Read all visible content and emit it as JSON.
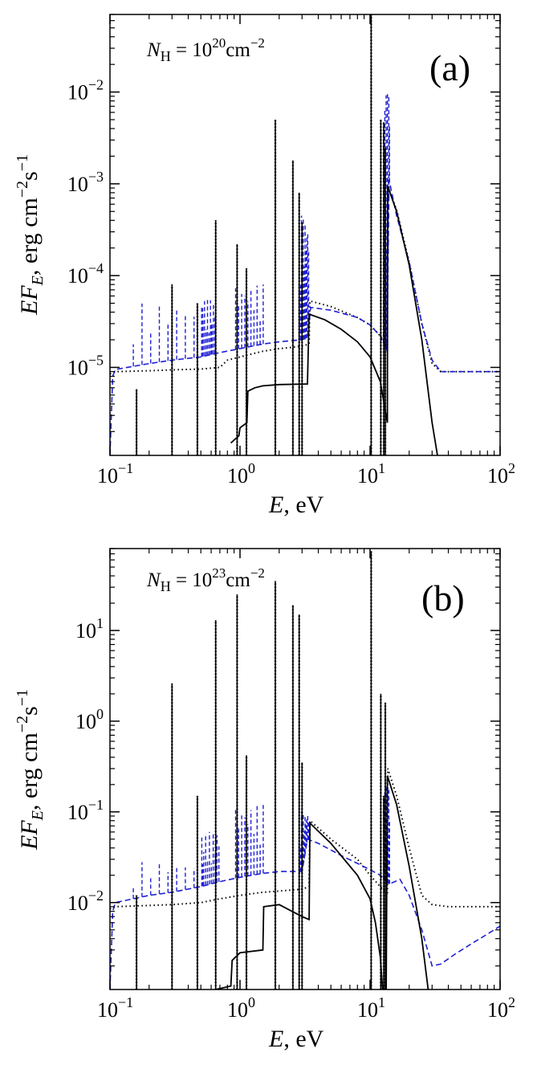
{
  "colors": {
    "total": "#000000",
    "dotted": "#000000",
    "dashed": "#1f1fd6"
  },
  "chart_data": [
    {
      "type": "line",
      "panel": "(a)",
      "annotation": {
        "symbol": "N",
        "sub": "H",
        "eq": " = 10",
        "exp": "20",
        "unit": "cm",
        "unit_exp": "−2"
      },
      "xlabel": {
        "var": "E",
        "rest": ", eV"
      },
      "ylabel": {
        "var": "EF",
        "sub": "E",
        "rest1": ", erg cm",
        "exp1": "−2",
        "rest2": "s",
        "exp2": "−1"
      },
      "xscale": "log",
      "yscale": "log",
      "xlim": [
        0.1,
        100
      ],
      "ylim": [
        1.1e-06,
        0.07
      ],
      "xticks": [
        {
          "base": "10",
          "exp": "−1",
          "value": 0.1
        },
        {
          "base": "10",
          "exp": "0",
          "value": 1
        },
        {
          "base": "10",
          "exp": "1",
          "value": 10
        },
        {
          "base": "10",
          "exp": "2",
          "value": 100
        }
      ],
      "yticks": [
        {
          "base": "10",
          "exp": "−5",
          "value": 1e-05
        },
        {
          "base": "10",
          "exp": "−4",
          "value": 0.0001
        },
        {
          "base": "10",
          "exp": "−3",
          "value": 0.001
        },
        {
          "base": "10",
          "exp": "−2",
          "value": 0.01
        }
      ],
      "series": [
        {
          "style": "solid",
          "continuum": [
            [
              0.85,
              1.5e-06
            ],
            [
              0.98,
              1.8e-06
            ],
            [
              1.0,
              2.2e-06
            ],
            [
              1.13,
              2.5e-06
            ],
            [
              1.15,
              5.5e-06
            ],
            [
              1.3,
              6e-06
            ],
            [
              1.5,
              6.3e-06
            ],
            [
              2.0,
              6.5e-06
            ],
            [
              3.3,
              6.6e-06
            ],
            [
              3.4,
              3.8e-05
            ],
            [
              4.5,
              3.3e-05
            ],
            [
              6,
              2.6e-05
            ],
            [
              8,
              1.9e-05
            ],
            [
              10,
              1.3e-05
            ],
            [
              12,
              7e-06
            ],
            [
              13.6,
              2.5e-06
            ],
            [
              13.65,
              0.00095
            ],
            [
              16,
              0.0005
            ],
            [
              20,
              0.00013
            ],
            [
              25,
              2e-05
            ],
            [
              30,
              2.5e-06
            ],
            [
              33,
              1.1e-06
            ]
          ],
          "lines": [
            [
              0.16,
              5.8e-06
            ],
            [
              0.3,
              8e-05
            ],
            [
              0.47,
              5e-05
            ],
            [
              0.65,
              0.0004
            ],
            [
              0.95,
              0.00022
            ],
            [
              1.12,
              0.00012
            ],
            [
              1.87,
              0.005
            ],
            [
              2.55,
              0.0018
            ],
            [
              2.85,
              0.0008
            ],
            [
              3.0,
              0.00038
            ],
            [
              10.2,
              0.07
            ],
            [
              12.1,
              0.005
            ],
            [
              12.75,
              0.0047
            ],
            [
              13.1,
              0.0025
            ]
          ]
        },
        {
          "style": "dotted",
          "points": [
            [
              0.1,
              8.5e-06
            ],
            [
              0.11,
              9e-06
            ],
            [
              0.2,
              9.2e-06
            ],
            [
              0.3,
              9.4e-06
            ],
            [
              0.5,
              9.6e-06
            ],
            [
              0.7,
              1e-05
            ],
            [
              0.8,
              1.2e-05
            ],
            [
              1.0,
              1.3e-05
            ],
            [
              1.5,
              1.5e-05
            ],
            [
              2,
              1.6e-05
            ],
            [
              3,
              1.7e-05
            ],
            [
              3.4,
              1.8e-05
            ],
            [
              3.45,
              5.3e-05
            ],
            [
              5,
              4.6e-05
            ],
            [
              8,
              3.5e-05
            ],
            [
              10,
              2.9e-05
            ],
            [
              12,
              2.2e-05
            ],
            [
              13.6,
              1.7e-05
            ],
            [
              13.7,
              0.00095
            ],
            [
              16,
              0.00052
            ],
            [
              20,
              0.00014
            ],
            [
              25,
              3e-05
            ],
            [
              30,
              1.1e-05
            ],
            [
              35,
              9e-06
            ],
            [
              50,
              9e-06
            ],
            [
              100,
              9e-06
            ]
          ]
        },
        {
          "style": "dashed",
          "points": [
            [
              0.1,
              1.1e-06
            ],
            [
              0.105,
              8e-06
            ],
            [
              0.11,
              9.5e-06
            ],
            [
              0.2,
              1.1e-05
            ],
            [
              0.3,
              1.2e-05
            ],
            [
              0.5,
              1.3e-05
            ],
            [
              0.7,
              1.45e-05
            ],
            [
              1.0,
              1.6e-05
            ],
            [
              1.5,
              1.8e-05
            ],
            [
              2,
              1.9e-05
            ],
            [
              3,
              2e-05
            ],
            [
              3.3,
              2.1e-05
            ],
            [
              3.5,
              4.5e-05
            ],
            [
              5,
              4.2e-05
            ],
            [
              8,
              3.5e-05
            ],
            [
              10,
              2.9e-05
            ],
            [
              12,
              2.2e-05
            ],
            [
              13.5,
              1.5e-05
            ],
            [
              14,
              0.0011
            ],
            [
              16,
              0.00045
            ],
            [
              20,
              0.00014
            ],
            [
              25,
              3e-05
            ],
            [
              30,
              1.2e-05
            ],
            [
              35,
              9e-06
            ],
            [
              50,
              9e-06
            ],
            [
              100,
              9e-06
            ]
          ],
          "forest_ranges": [
            [
              0.14,
              0.65,
              5e-05
            ],
            [
              0.5,
              0.65,
              5.5e-05
            ],
            [
              0.9,
              1.55,
              8e-05
            ],
            [
              2.9,
              3.4,
              0.00045
            ],
            [
              12.6,
              14.2,
              0.01
            ]
          ]
        }
      ]
    },
    {
      "type": "line",
      "panel": "(b)",
      "annotation": {
        "symbol": "N",
        "sub": "H",
        "eq": " = 10",
        "exp": "23",
        "unit": "cm",
        "unit_exp": "−2"
      },
      "xlabel": {
        "var": "E",
        "rest": ", eV"
      },
      "ylabel": {
        "var": "EF",
        "sub": "E",
        "rest1": ", erg cm",
        "exp1": "−2",
        "rest2": "s",
        "exp2": "−1"
      },
      "xscale": "log",
      "yscale": "log",
      "xlim": [
        0.1,
        100
      ],
      "ylim": [
        0.0011,
        80
      ],
      "xticks": [
        {
          "base": "10",
          "exp": "−1",
          "value": 0.1
        },
        {
          "base": "10",
          "exp": "0",
          "value": 1
        },
        {
          "base": "10",
          "exp": "1",
          "value": 10
        },
        {
          "base": "10",
          "exp": "2",
          "value": 100
        }
      ],
      "yticks": [
        {
          "base": "10",
          "exp": "−2",
          "value": 0.01
        },
        {
          "base": "10",
          "exp": "−1",
          "value": 0.1
        },
        {
          "base": "10",
          "exp": "0",
          "value": 1
        },
        {
          "base": "10",
          "exp": "1",
          "value": 10
        }
      ],
      "series": [
        {
          "style": "solid",
          "continuum": [
            [
              0.65,
              0.0011
            ],
            [
              0.85,
              0.0012
            ],
            [
              0.87,
              0.0023
            ],
            [
              1.0,
              0.0028
            ],
            [
              1.5,
              0.003
            ],
            [
              1.52,
              0.009
            ],
            [
              2,
              0.0095
            ],
            [
              3,
              0.007
            ],
            [
              3.4,
              0.0065
            ],
            [
              3.45,
              0.075
            ],
            [
              5,
              0.045
            ],
            [
              8,
              0.02
            ],
            [
              10,
              0.011
            ],
            [
              11,
              0.006
            ],
            [
              12,
              0.0025
            ],
            [
              12.5,
              0.0011
            ],
            [
              13.3,
              0.0011
            ],
            [
              13.6,
              0.25
            ],
            [
              16,
              0.12
            ],
            [
              20,
              0.025
            ],
            [
              25,
              0.004
            ],
            [
              28,
              0.0011
            ]
          ],
          "lines": [
            [
              0.16,
              0.012
            ],
            [
              0.3,
              2.6
            ],
            [
              0.47,
              0.15
            ],
            [
              0.65,
              13
            ],
            [
              0.95,
              25
            ],
            [
              1.12,
              0.42
            ],
            [
              1.87,
              35
            ],
            [
              2.55,
              19
            ],
            [
              2.85,
              15
            ],
            [
              3.0,
              0.35
            ],
            [
              10.2,
              75
            ],
            [
              12.1,
              2.0
            ],
            [
              12.75,
              0.15
            ],
            [
              13.1,
              1.6
            ]
          ]
        },
        {
          "style": "dotted",
          "points": [
            [
              0.1,
              0.0085
            ],
            [
              0.11,
              0.009
            ],
            [
              0.3,
              0.0095
            ],
            [
              0.5,
              0.01
            ],
            [
              0.7,
              0.011
            ],
            [
              1.0,
              0.012
            ],
            [
              1.5,
              0.013
            ],
            [
              3,
              0.014
            ],
            [
              3.4,
              0.015
            ],
            [
              3.45,
              0.08
            ],
            [
              5,
              0.05
            ],
            [
              8,
              0.03
            ],
            [
              10,
              0.02
            ],
            [
              12,
              0.015
            ],
            [
              13.6,
              0.012
            ],
            [
              13.7,
              0.3
            ],
            [
              16,
              0.15
            ],
            [
              20,
              0.04
            ],
            [
              25,
              0.012
            ],
            [
              30,
              0.0095
            ],
            [
              40,
              0.009
            ],
            [
              100,
              0.009
            ]
          ]
        },
        {
          "style": "dashed",
          "points": [
            [
              0.1,
              0.0011
            ],
            [
              0.105,
              0.008
            ],
            [
              0.11,
              0.01
            ],
            [
              0.2,
              0.012
            ],
            [
              0.3,
              0.013
            ],
            [
              0.5,
              0.015
            ],
            [
              0.7,
              0.017
            ],
            [
              1.0,
              0.019
            ],
            [
              1.5,
              0.021
            ],
            [
              2,
              0.022
            ],
            [
              3,
              0.022
            ],
            [
              3.3,
              0.05
            ],
            [
              4,
              0.045
            ],
            [
              6,
              0.033
            ],
            [
              8,
              0.027
            ],
            [
              10,
              0.023
            ],
            [
              12,
              0.02
            ],
            [
              14,
              0.016
            ],
            [
              17,
              0.018
            ],
            [
              20,
              0.012
            ],
            [
              25,
              0.005
            ],
            [
              30,
              0.002
            ],
            [
              35,
              0.0021
            ],
            [
              45,
              0.0027
            ],
            [
              60,
              0.0035
            ],
            [
              80,
              0.0045
            ],
            [
              100,
              0.0055
            ]
          ],
          "forest_ranges": [
            [
              0.14,
              0.65,
              0.028
            ],
            [
              0.5,
              0.7,
              0.06
            ],
            [
              0.9,
              1.55,
              0.12
            ],
            [
              2.9,
              3.4,
              0.1
            ],
            [
              12.6,
              14.2,
              0.2
            ]
          ]
        }
      ]
    }
  ]
}
